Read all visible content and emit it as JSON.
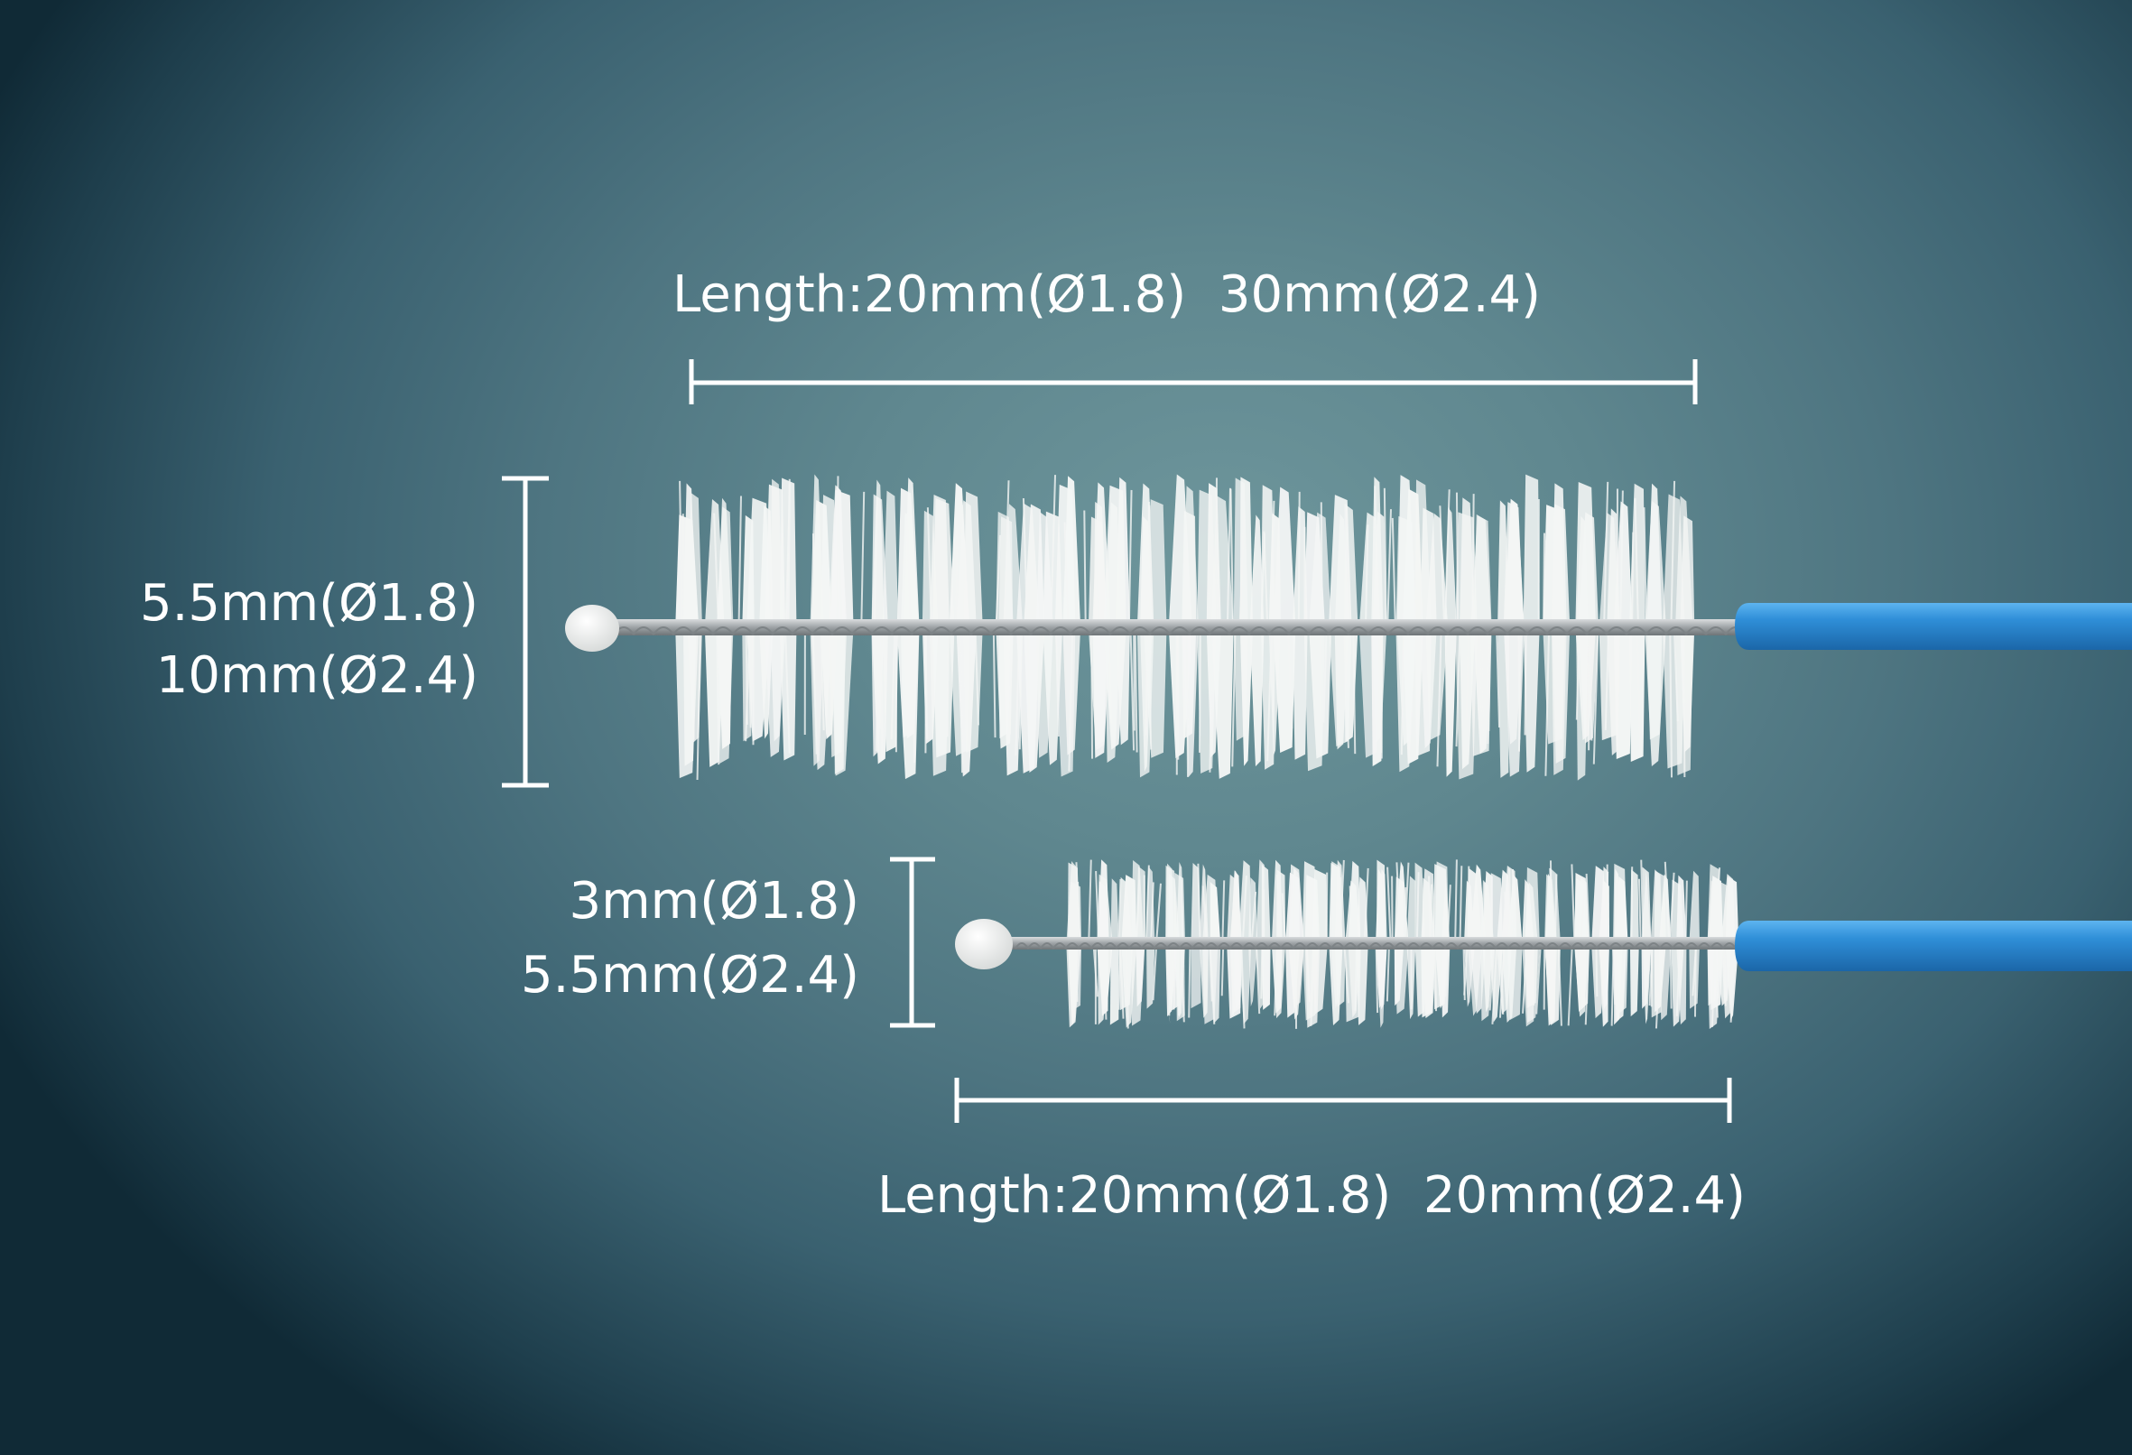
{
  "large_brush": {
    "length_label": "Length:20mm(Ø1.8)  30mm(Ø2.4)",
    "diameter_lines": [
      "5.5mm(Ø1.8)",
      "10mm(Ø2.4)"
    ]
  },
  "small_brush": {
    "length_label": "Length:20mm(Ø1.8)  20mm(Ø2.4)",
    "diameter_lines": [
      "3mm(Ø1.8)",
      "5.5mm(Ø2.4)"
    ]
  },
  "colors": {
    "handle": "#2f8fd8",
    "bristle": "#f4f6f5",
    "wire": "#a9aeb1",
    "dimension_line": "#ffffff"
  }
}
